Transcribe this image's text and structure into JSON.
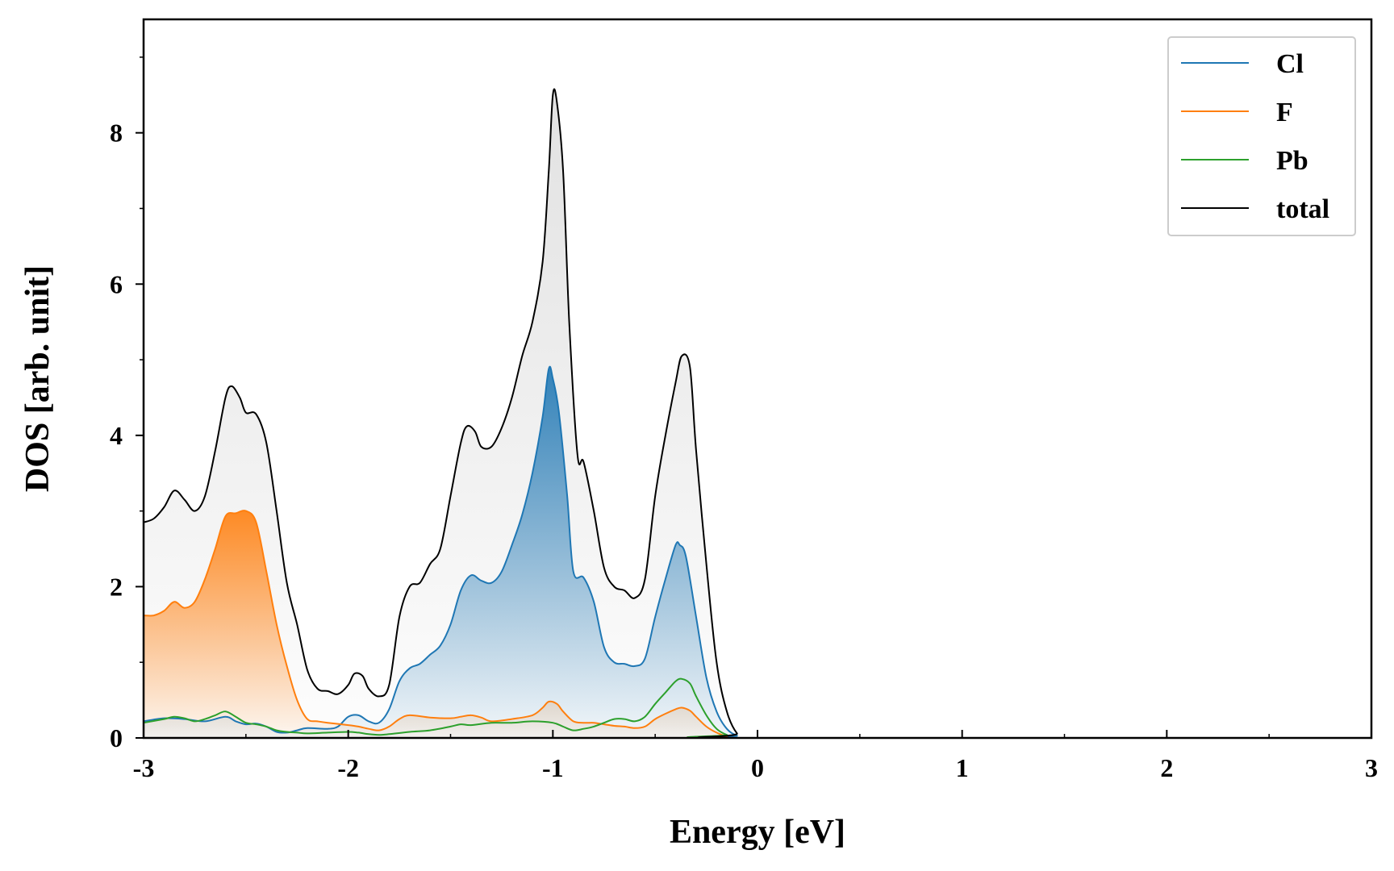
{
  "chart_data": {
    "type": "line",
    "title": "",
    "xlabel": "Energy [eV]",
    "ylabel": "DOS [arb. unit]",
    "xlim": [
      -3,
      3
    ],
    "ylim": [
      0,
      9.5
    ],
    "xticks": [
      -3,
      -2,
      -1,
      0,
      1,
      2,
      3
    ],
    "yticks": [
      0,
      2,
      4,
      6,
      8
    ],
    "grid": false,
    "legend_position": "top-right",
    "series": [
      {
        "name": "Cl",
        "color": "#1f77b4",
        "fill": true,
        "points": [
          [
            -3.0,
            0.22
          ],
          [
            -2.9,
            0.26
          ],
          [
            -2.8,
            0.25
          ],
          [
            -2.7,
            0.22
          ],
          [
            -2.6,
            0.28
          ],
          [
            -2.55,
            0.22
          ],
          [
            -2.5,
            0.18
          ],
          [
            -2.45,
            0.19
          ],
          [
            -2.4,
            0.15
          ],
          [
            -2.35,
            0.08
          ],
          [
            -2.3,
            0.07
          ],
          [
            -2.25,
            0.1
          ],
          [
            -2.2,
            0.13
          ],
          [
            -2.1,
            0.12
          ],
          [
            -2.05,
            0.15
          ],
          [
            -2.0,
            0.28
          ],
          [
            -1.95,
            0.3
          ],
          [
            -1.9,
            0.22
          ],
          [
            -1.85,
            0.2
          ],
          [
            -1.8,
            0.38
          ],
          [
            -1.75,
            0.75
          ],
          [
            -1.7,
            0.92
          ],
          [
            -1.65,
            0.98
          ],
          [
            -1.6,
            1.1
          ],
          [
            -1.55,
            1.22
          ],
          [
            -1.5,
            1.5
          ],
          [
            -1.45,
            1.95
          ],
          [
            -1.4,
            2.15
          ],
          [
            -1.35,
            2.08
          ],
          [
            -1.3,
            2.05
          ],
          [
            -1.25,
            2.2
          ],
          [
            -1.2,
            2.55
          ],
          [
            -1.15,
            2.95
          ],
          [
            -1.1,
            3.5
          ],
          [
            -1.05,
            4.25
          ],
          [
            -1.02,
            4.88
          ],
          [
            -1.0,
            4.75
          ],
          [
            -0.97,
            4.3
          ],
          [
            -0.93,
            3.2
          ],
          [
            -0.9,
            2.2
          ],
          [
            -0.85,
            2.12
          ],
          [
            -0.8,
            1.8
          ],
          [
            -0.75,
            1.2
          ],
          [
            -0.7,
            1.0
          ],
          [
            -0.65,
            0.98
          ],
          [
            -0.6,
            0.95
          ],
          [
            -0.55,
            1.05
          ],
          [
            -0.5,
            1.6
          ],
          [
            -0.45,
            2.1
          ],
          [
            -0.4,
            2.55
          ],
          [
            -0.38,
            2.55
          ],
          [
            -0.35,
            2.4
          ],
          [
            -0.3,
            1.6
          ],
          [
            -0.25,
            0.8
          ],
          [
            -0.2,
            0.35
          ],
          [
            -0.15,
            0.12
          ],
          [
            -0.1,
            0.03
          ],
          [
            -0.05,
            0.0
          ],
          [
            3.0,
            0.0
          ]
        ]
      },
      {
        "name": "F",
        "color": "#ff7f0e",
        "fill": true,
        "points": [
          [
            -3.0,
            1.62
          ],
          [
            -2.95,
            1.62
          ],
          [
            -2.9,
            1.68
          ],
          [
            -2.85,
            1.8
          ],
          [
            -2.8,
            1.72
          ],
          [
            -2.75,
            1.8
          ],
          [
            -2.7,
            2.1
          ],
          [
            -2.65,
            2.5
          ],
          [
            -2.6,
            2.93
          ],
          [
            -2.55,
            2.97
          ],
          [
            -2.5,
            3.0
          ],
          [
            -2.45,
            2.85
          ],
          [
            -2.4,
            2.2
          ],
          [
            -2.35,
            1.5
          ],
          [
            -2.3,
            0.95
          ],
          [
            -2.25,
            0.5
          ],
          [
            -2.2,
            0.25
          ],
          [
            -2.15,
            0.22
          ],
          [
            -2.1,
            0.2
          ],
          [
            -2.0,
            0.17
          ],
          [
            -1.95,
            0.15
          ],
          [
            -1.9,
            0.12
          ],
          [
            -1.85,
            0.1
          ],
          [
            -1.8,
            0.15
          ],
          [
            -1.75,
            0.25
          ],
          [
            -1.7,
            0.3
          ],
          [
            -1.6,
            0.27
          ],
          [
            -1.5,
            0.26
          ],
          [
            -1.45,
            0.28
          ],
          [
            -1.4,
            0.3
          ],
          [
            -1.35,
            0.27
          ],
          [
            -1.3,
            0.22
          ],
          [
            -1.2,
            0.25
          ],
          [
            -1.1,
            0.3
          ],
          [
            -1.05,
            0.4
          ],
          [
            -1.02,
            0.48
          ],
          [
            -0.98,
            0.45
          ],
          [
            -0.95,
            0.35
          ],
          [
            -0.9,
            0.22
          ],
          [
            -0.85,
            0.2
          ],
          [
            -0.8,
            0.2
          ],
          [
            -0.75,
            0.18
          ],
          [
            -0.7,
            0.16
          ],
          [
            -0.65,
            0.15
          ],
          [
            -0.6,
            0.13
          ],
          [
            -0.55,
            0.15
          ],
          [
            -0.5,
            0.25
          ],
          [
            -0.45,
            0.32
          ],
          [
            -0.4,
            0.38
          ],
          [
            -0.37,
            0.4
          ],
          [
            -0.33,
            0.36
          ],
          [
            -0.3,
            0.28
          ],
          [
            -0.25,
            0.15
          ],
          [
            -0.2,
            0.07
          ],
          [
            -0.15,
            0.02
          ],
          [
            -0.1,
            0.0
          ],
          [
            3.0,
            0.0
          ]
        ]
      },
      {
        "name": "Pb",
        "color": "#2ca02c",
        "fill": false,
        "points": [
          [
            -3.0,
            0.2
          ],
          [
            -2.9,
            0.25
          ],
          [
            -2.85,
            0.28
          ],
          [
            -2.8,
            0.26
          ],
          [
            -2.75,
            0.22
          ],
          [
            -2.7,
            0.25
          ],
          [
            -2.65,
            0.3
          ],
          [
            -2.6,
            0.35
          ],
          [
            -2.55,
            0.28
          ],
          [
            -2.5,
            0.2
          ],
          [
            -2.45,
            0.18
          ],
          [
            -2.4,
            0.15
          ],
          [
            -2.35,
            0.1
          ],
          [
            -2.3,
            0.08
          ],
          [
            -2.25,
            0.07
          ],
          [
            -2.2,
            0.06
          ],
          [
            -2.1,
            0.07
          ],
          [
            -2.0,
            0.08
          ],
          [
            -1.95,
            0.07
          ],
          [
            -1.9,
            0.05
          ],
          [
            -1.85,
            0.04
          ],
          [
            -1.8,
            0.05
          ],
          [
            -1.7,
            0.08
          ],
          [
            -1.6,
            0.1
          ],
          [
            -1.5,
            0.15
          ],
          [
            -1.45,
            0.18
          ],
          [
            -1.4,
            0.17
          ],
          [
            -1.3,
            0.2
          ],
          [
            -1.2,
            0.2
          ],
          [
            -1.1,
            0.22
          ],
          [
            -1.0,
            0.2
          ],
          [
            -0.95,
            0.15
          ],
          [
            -0.9,
            0.1
          ],
          [
            -0.85,
            0.12
          ],
          [
            -0.8,
            0.15
          ],
          [
            -0.75,
            0.2
          ],
          [
            -0.7,
            0.25
          ],
          [
            -0.65,
            0.25
          ],
          [
            -0.6,
            0.22
          ],
          [
            -0.55,
            0.28
          ],
          [
            -0.5,
            0.45
          ],
          [
            -0.45,
            0.6
          ],
          [
            -0.4,
            0.75
          ],
          [
            -0.37,
            0.78
          ],
          [
            -0.33,
            0.72
          ],
          [
            -0.3,
            0.55
          ],
          [
            -0.25,
            0.3
          ],
          [
            -0.2,
            0.12
          ],
          [
            -0.15,
            0.04
          ],
          [
            -0.1,
            0.0
          ],
          [
            3.0,
            0.0
          ]
        ]
      },
      {
        "name": "total",
        "color": "#000000",
        "fill": true,
        "points": [
          [
            -3.0,
            2.85
          ],
          [
            -2.95,
            2.9
          ],
          [
            -2.9,
            3.05
          ],
          [
            -2.85,
            3.27
          ],
          [
            -2.8,
            3.15
          ],
          [
            -2.75,
            3.0
          ],
          [
            -2.7,
            3.2
          ],
          [
            -2.65,
            3.8
          ],
          [
            -2.6,
            4.5
          ],
          [
            -2.57,
            4.65
          ],
          [
            -2.53,
            4.5
          ],
          [
            -2.5,
            4.3
          ],
          [
            -2.45,
            4.28
          ],
          [
            -2.4,
            3.9
          ],
          [
            -2.35,
            3.0
          ],
          [
            -2.3,
            2.05
          ],
          [
            -2.25,
            1.5
          ],
          [
            -2.2,
            0.9
          ],
          [
            -2.15,
            0.65
          ],
          [
            -2.1,
            0.62
          ],
          [
            -2.05,
            0.58
          ],
          [
            -2.0,
            0.7
          ],
          [
            -1.97,
            0.85
          ],
          [
            -1.93,
            0.82
          ],
          [
            -1.9,
            0.65
          ],
          [
            -1.85,
            0.55
          ],
          [
            -1.8,
            0.7
          ],
          [
            -1.75,
            1.6
          ],
          [
            -1.7,
            2.0
          ],
          [
            -1.65,
            2.05
          ],
          [
            -1.6,
            2.3
          ],
          [
            -1.55,
            2.5
          ],
          [
            -1.5,
            3.2
          ],
          [
            -1.45,
            3.9
          ],
          [
            -1.42,
            4.12
          ],
          [
            -1.38,
            4.05
          ],
          [
            -1.35,
            3.85
          ],
          [
            -1.3,
            3.85
          ],
          [
            -1.25,
            4.1
          ],
          [
            -1.2,
            4.5
          ],
          [
            -1.15,
            5.05
          ],
          [
            -1.1,
            5.5
          ],
          [
            -1.05,
            6.3
          ],
          [
            -1.02,
            7.5
          ],
          [
            -1.0,
            8.5
          ],
          [
            -0.98,
            8.4
          ],
          [
            -0.95,
            7.5
          ],
          [
            -0.92,
            5.5
          ],
          [
            -0.88,
            3.75
          ],
          [
            -0.85,
            3.65
          ],
          [
            -0.8,
            3.0
          ],
          [
            -0.75,
            2.25
          ],
          [
            -0.7,
            2.0
          ],
          [
            -0.65,
            1.95
          ],
          [
            -0.6,
            1.85
          ],
          [
            -0.55,
            2.1
          ],
          [
            -0.5,
            3.2
          ],
          [
            -0.45,
            4.0
          ],
          [
            -0.4,
            4.7
          ],
          [
            -0.37,
            5.05
          ],
          [
            -0.33,
            4.9
          ],
          [
            -0.3,
            3.8
          ],
          [
            -0.25,
            2.3
          ],
          [
            -0.2,
            1.0
          ],
          [
            -0.15,
            0.35
          ],
          [
            -0.1,
            0.06
          ],
          [
            -0.05,
            0.0
          ],
          [
            3.0,
            0.0
          ]
        ]
      }
    ]
  }
}
